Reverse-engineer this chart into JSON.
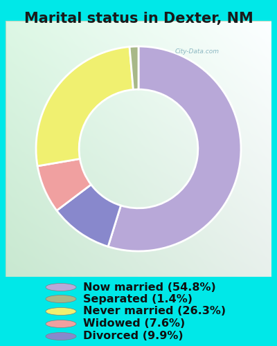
{
  "title": "Marital status in Dexter, NM",
  "slices": [
    54.8,
    9.9,
    7.6,
    26.3,
    1.4
  ],
  "slice_order_labels": [
    "Now married",
    "Divorced",
    "Widowed",
    "Never married",
    "Separated"
  ],
  "slice_colors": [
    "#B8A8D8",
    "#8888CC",
    "#F0A0A0",
    "#F0F070",
    "#A8B888"
  ],
  "legend_labels": [
    "Now married (54.8%)",
    "Separated (1.4%)",
    "Never married (26.3%)",
    "Widowed (7.6%)",
    "Divorced (9.9%)"
  ],
  "legend_colors": [
    "#B8A8D8",
    "#A8B888",
    "#F0F070",
    "#F0A0A0",
    "#8888CC"
  ],
  "bg_outer": "#00E8E8",
  "bg_chart_left": "#C8E8D0",
  "bg_chart_right": "#E8F8F0",
  "watermark": "City-Data.com",
  "title_fontsize": 15,
  "legend_fontsize": 11.5,
  "donut_width": 0.42,
  "startangle": 90
}
